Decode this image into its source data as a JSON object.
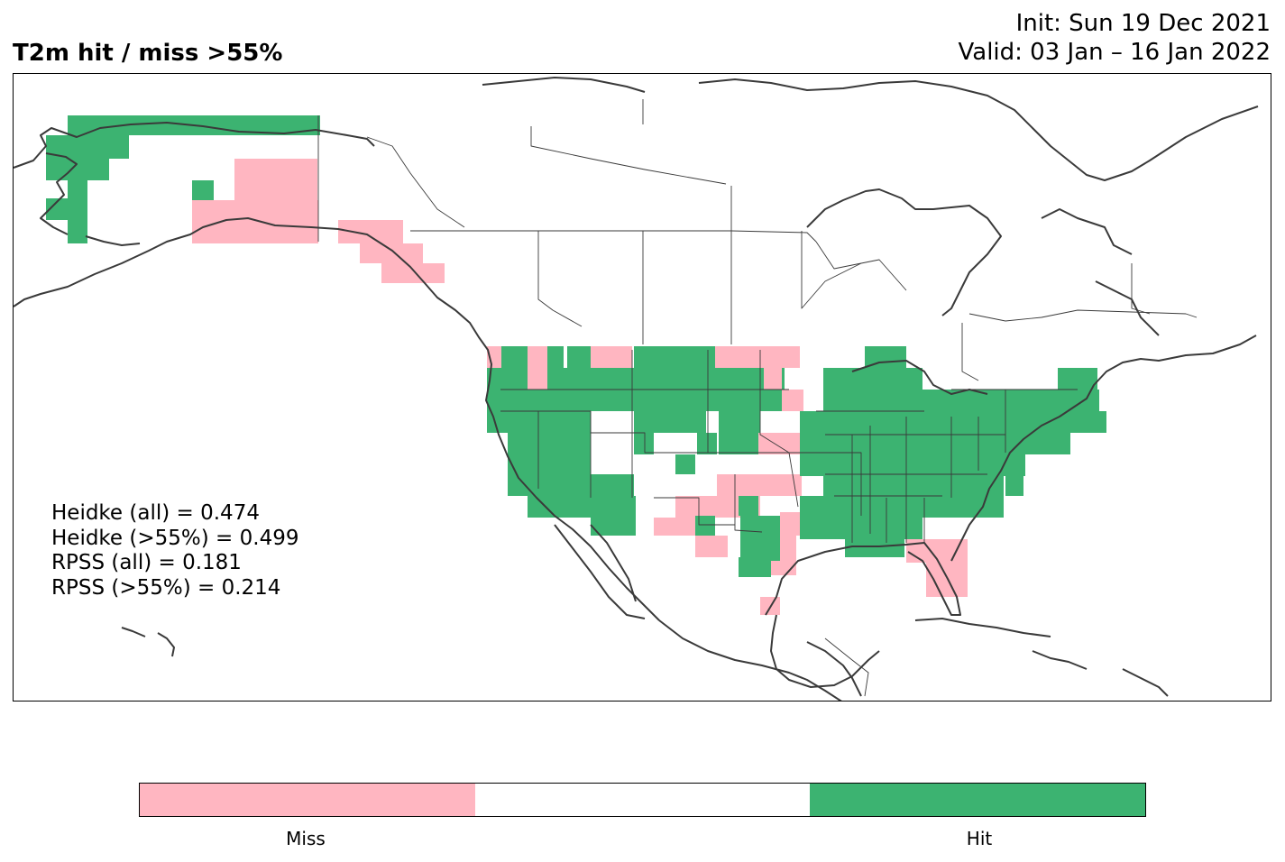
{
  "title": "T2m hit / miss  >55%",
  "init": "Init: Sun 19 Dec 2021",
  "valid": "Valid: 03 Jan – 16 Jan 2022",
  "scores": {
    "heidke_all": "Heidke (all) = 0.474",
    "heidke_55": "Heidke (>55%) = 0.499",
    "rpss_all": "RPSS (all) = 0.181",
    "rpss_55": "RPSS (>55%) = 0.214"
  },
  "colors": {
    "miss": "#ffb6c1",
    "neutral": "#ffffff",
    "hit": "#3cb371",
    "coast": "#3a3a3a"
  },
  "colorbar": {
    "miss_label": "Miss",
    "hit_label": "Hit"
  }
}
